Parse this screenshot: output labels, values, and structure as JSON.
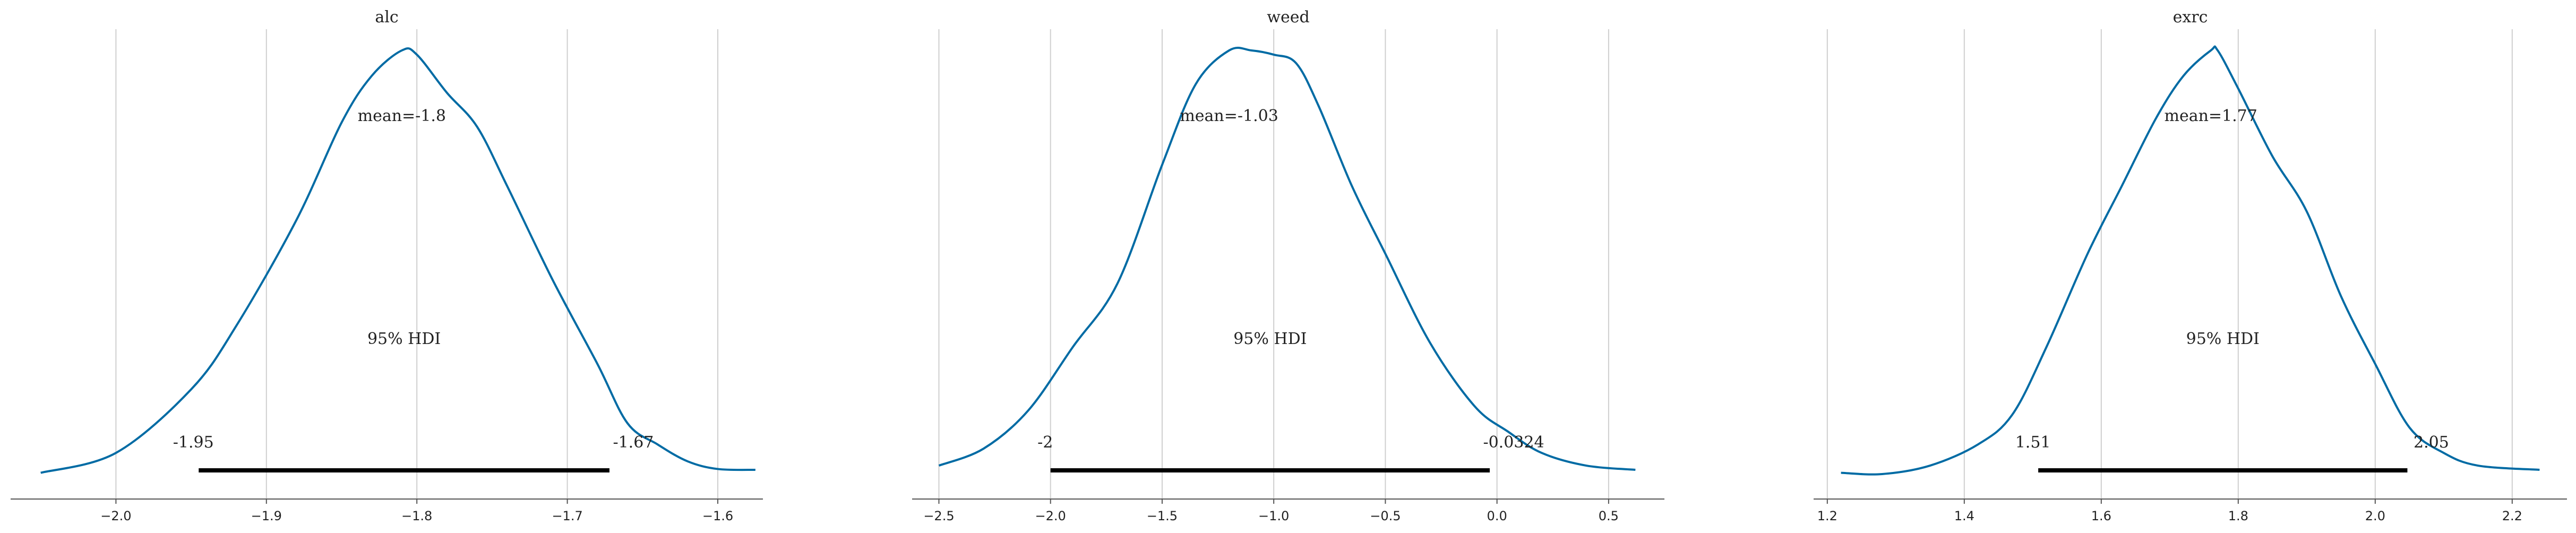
{
  "chart_data": [
    {
      "type": "density",
      "title": "alc",
      "xlim": [
        -2.07,
        -1.57
      ],
      "ticks": [
        "−2.0",
        "−1.9",
        "−1.8",
        "−1.7",
        "−1.6"
      ],
      "tick_values": [
        -2.0,
        -1.9,
        -1.8,
        -1.7,
        -1.6
      ],
      "grid": true,
      "mean_label": "mean=-1.8",
      "hdi_label": "95% HDI",
      "hdi": [
        -1.945,
        -1.672
      ],
      "hdi_low_label": "-1.95",
      "hdi_high_label": "-1.67",
      "density": {
        "x": [
          -2.05,
          -2.0,
          -1.95,
          -1.92,
          -1.88,
          -1.85,
          -1.83,
          -1.81,
          -1.8,
          -1.78,
          -1.76,
          -1.74,
          -1.71,
          -1.68,
          -1.66,
          -1.64,
          -1.62,
          -1.6,
          -1.575
        ],
        "y": [
          0.003,
          0.05,
          0.2,
          0.35,
          0.6,
          0.83,
          0.94,
          1.0,
          0.99,
          0.9,
          0.82,
          0.68,
          0.46,
          0.26,
          0.12,
          0.07,
          0.03,
          0.012,
          0.01
        ]
      },
      "color": "#006ba4"
    },
    {
      "type": "density",
      "title": "weed",
      "xlim": [
        -2.62,
        0.75
      ],
      "ticks": [
        "−2.5",
        "−2.0",
        "−1.5",
        "−1.0",
        "−0.5",
        "0.0",
        "0.5"
      ],
      "tick_values": [
        -2.5,
        -2.0,
        -1.5,
        -1.0,
        -0.5,
        0.0,
        0.5
      ],
      "grid": true,
      "mean_label": "mean=-1.03",
      "hdi_label": "95% HDI",
      "hdi": [
        -2.0,
        -0.0324
      ],
      "hdi_low_label": "-2",
      "hdi_high_label": "-0.0324",
      "density": {
        "x": [
          -2.5,
          -2.3,
          -2.1,
          -1.9,
          -1.7,
          -1.5,
          -1.35,
          -1.2,
          -1.1,
          -1.0,
          -0.9,
          -0.8,
          -0.65,
          -0.5,
          -0.3,
          -0.1,
          0.05,
          0.2,
          0.4,
          0.62
        ],
        "y": [
          0.02,
          0.06,
          0.15,
          0.3,
          0.45,
          0.73,
          0.92,
          1.0,
          1.0,
          0.99,
          0.97,
          0.87,
          0.68,
          0.52,
          0.31,
          0.16,
          0.1,
          0.05,
          0.02,
          0.01
        ]
      },
      "color": "#006ba4"
    },
    {
      "type": "density",
      "title": "exrc",
      "xlim": [
        1.18,
        2.28
      ],
      "ticks": [
        "1.2",
        "1.4",
        "1.6",
        "1.8",
        "2.0",
        "2.2"
      ],
      "tick_values": [
        1.2,
        1.4,
        1.6,
        1.8,
        2.0,
        2.2
      ],
      "grid": true,
      "mean_label": "mean=1.77",
      "hdi_label": "95% HDI",
      "hdi": [
        1.508,
        2.047
      ],
      "hdi_low_label": "1.51",
      "hdi_high_label": "2.05",
      "density": {
        "x": [
          1.22,
          1.28,
          1.35,
          1.42,
          1.47,
          1.52,
          1.58,
          1.63,
          1.68,
          1.72,
          1.76,
          1.77,
          1.8,
          1.85,
          1.9,
          1.95,
          2.0,
          2.05,
          2.1,
          2.15,
          2.24
        ],
        "y": [
          0.003,
          0.0,
          0.02,
          0.07,
          0.14,
          0.3,
          0.52,
          0.68,
          0.84,
          0.94,
          1.0,
          1.0,
          0.91,
          0.75,
          0.62,
          0.42,
          0.26,
          0.11,
          0.05,
          0.02,
          0.01
        ]
      },
      "color": "#006ba4"
    }
  ]
}
